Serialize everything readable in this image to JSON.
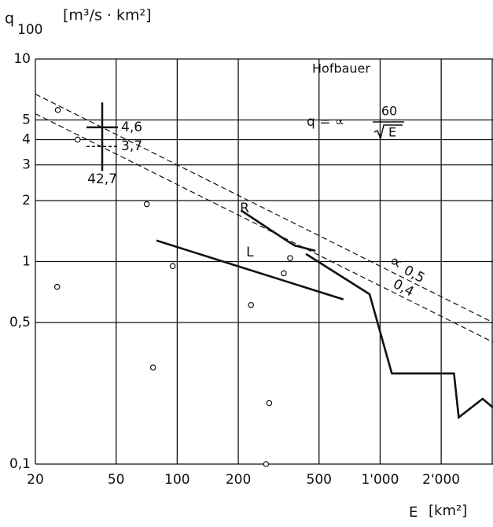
{
  "chart_data": {
    "type": "line",
    "title": "Hofbauer",
    "y_label": "q",
    "y_label_sub": "100",
    "y_unit": "[m³/s · km²]",
    "x_label": "E",
    "x_unit": "[km²]",
    "log_x": true,
    "log_y": true,
    "grid": true,
    "xlim": [
      20,
      3600
    ],
    "ylim": [
      0.1,
      10
    ],
    "xticks": [
      20,
      50,
      100,
      200,
      500,
      {
        "value": 1000,
        "label": "1'000"
      },
      {
        "value": 2000,
        "label": "2'000"
      }
    ],
    "yticks": [
      {
        "value": 0.1,
        "label": "0,1"
      },
      {
        "value": 0.5,
        "label": "0,5"
      },
      1,
      2,
      3,
      4,
      5,
      10
    ],
    "formula": {
      "lhs": "q = ∝",
      "numerator": 60,
      "denominator": "E"
    },
    "alpha_symbol": "∝",
    "reference_lines": [
      {
        "value": 0.5,
        "label": "0,5"
      },
      {
        "value": 0.4,
        "label": "0,4"
      }
    ],
    "crosshair": {
      "x": {
        "value": 42.7,
        "label": "42,7"
      },
      "values": [
        {
          "value": 4.6,
          "label": "4,6"
        },
        {
          "value": 3.7,
          "label": "3,7"
        }
      ]
    },
    "series": [
      {
        "name": "L",
        "x": [
          79,
          659
        ],
        "values": [
          1.27,
          0.65
        ]
      },
      {
        "name": "R",
        "x": [
          206,
          350,
          379,
          480
        ],
        "values": [
          1.79,
          1.26,
          1.2,
          1.13
        ]
      },
      {
        "x": [
          431,
          887,
          1142,
          2312,
          2440,
          3200,
          3600
        ],
        "values": [
          1.09,
          0.69,
          0.28,
          0.28,
          0.17,
          0.21,
          0.19
        ]
      }
    ],
    "points": {
      "x": [
        25.8,
        32.3,
        25.6,
        70.8,
        76,
        95,
        231,
        335,
        360,
        284,
        274
      ],
      "values": [
        5.6,
        4.0,
        0.75,
        1.92,
        0.3,
        0.95,
        0.61,
        0.875,
        1.04,
        0.2,
        0.1
      ]
    }
  }
}
